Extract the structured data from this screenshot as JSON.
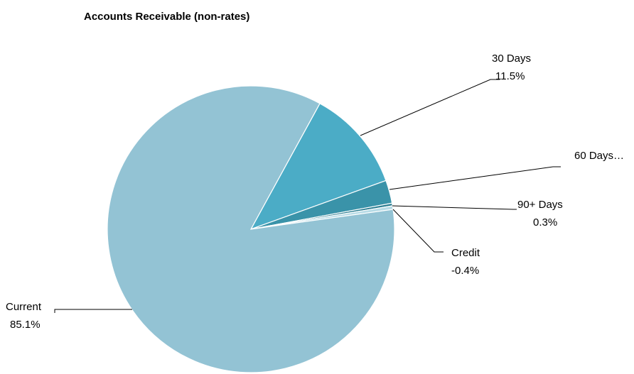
{
  "chart_data": {
    "type": "pie",
    "title": "Accounts Receivable (non-rates)",
    "slices": [
      {
        "label": "Current",
        "value_label": "85.1%",
        "value": 85.1,
        "color": "#93c3d4"
      },
      {
        "label": "30 Days",
        "value_label": "11.5%",
        "value": 11.5,
        "color": "#4bacc6"
      },
      {
        "label": "60 Days…",
        "value_label": "",
        "value": 2.6,
        "color": "#3a93a9"
      },
      {
        "label": "90+ Days",
        "value_label": "0.3%",
        "value": 0.3,
        "color": "#2e7f93"
      },
      {
        "label": "Credit",
        "value_label": "-0.4%",
        "value": 0.4,
        "color": "#b7dbe6"
      }
    ],
    "legend": "none"
  }
}
